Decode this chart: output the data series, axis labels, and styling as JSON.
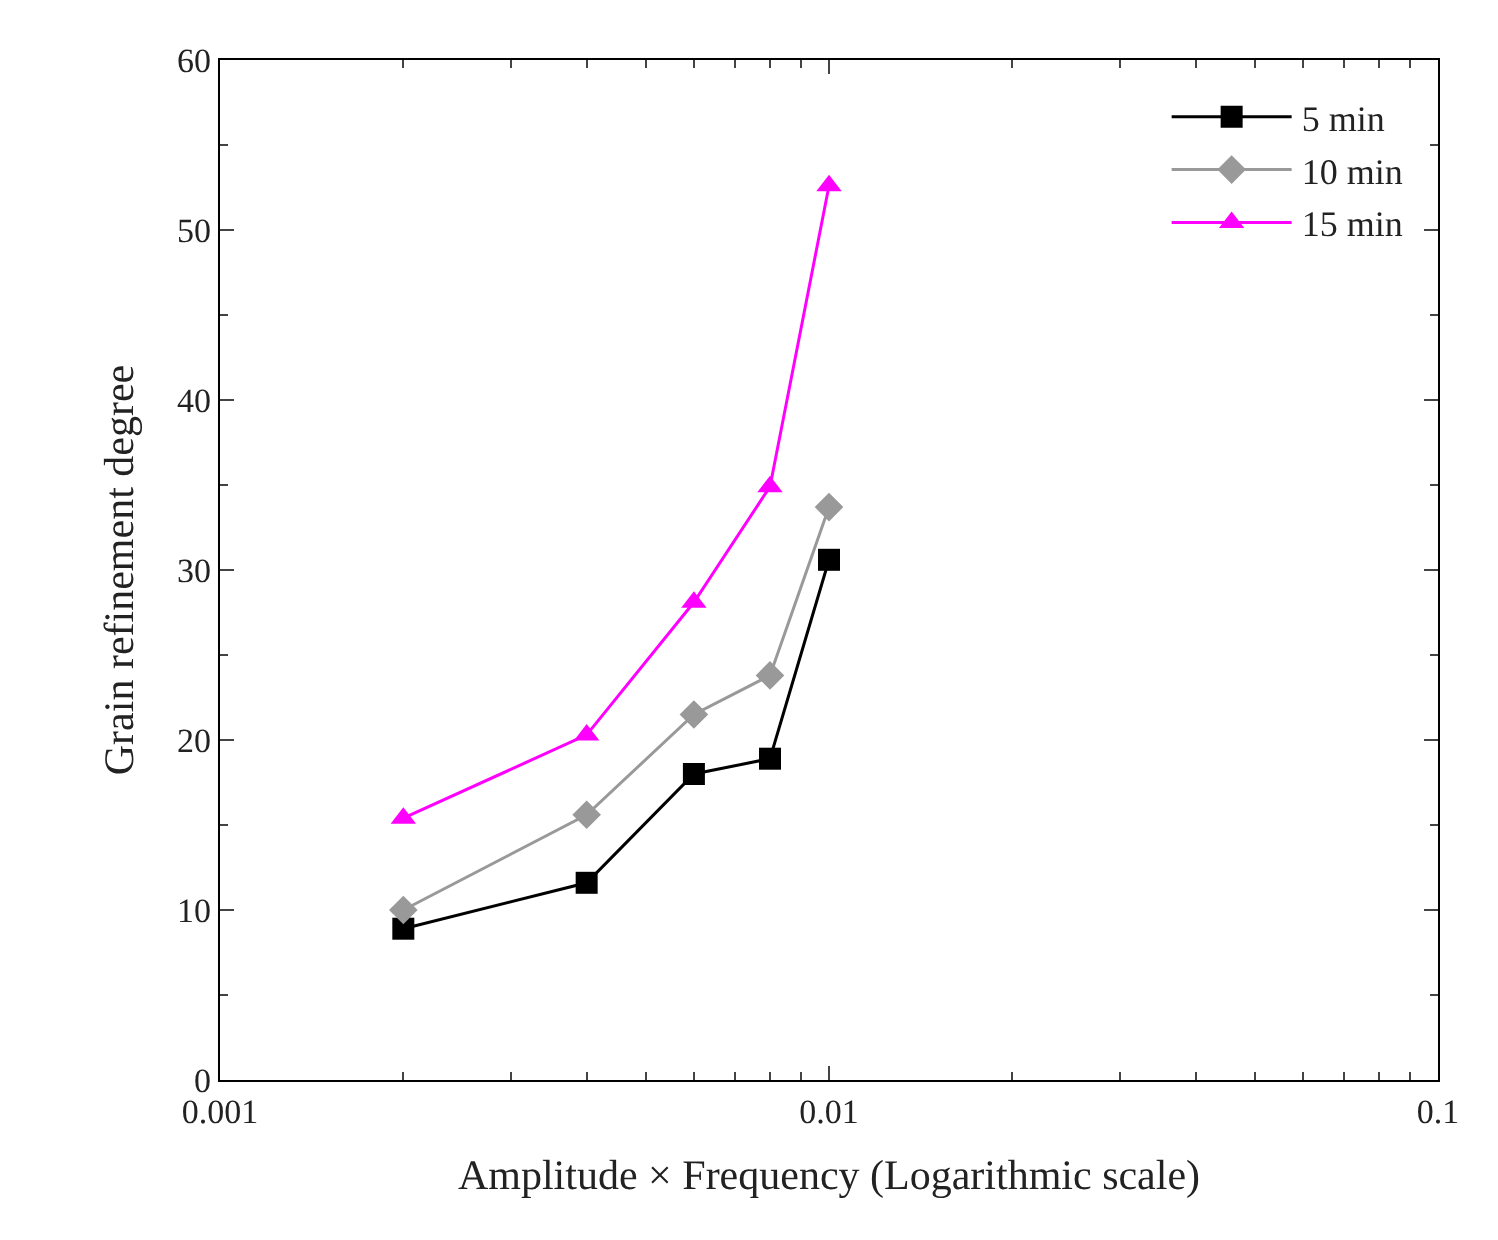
{
  "chart_data": {
    "type": "line",
    "xlabel": "Amplitude × Frequency (Logarithmic scale)",
    "ylabel": "Grain refinement degree",
    "x": [
      0.002,
      0.004,
      0.006,
      0.008,
      0.01
    ],
    "series": [
      {
        "name": "5 min",
        "color": "#000000",
        "marker": "square",
        "values": [
          8.9,
          11.6,
          18.0,
          18.9,
          30.6
        ]
      },
      {
        "name": "10 min",
        "color": "#999999",
        "marker": "diamond",
        "values": [
          10.0,
          15.6,
          21.5,
          23.8,
          33.7
        ]
      },
      {
        "name": "15 min",
        "color": "#ff00ff",
        "marker": "triangle",
        "values": [
          15.4,
          20.3,
          28.1,
          34.9,
          52.6
        ]
      }
    ],
    "log": "x",
    "xlim": [
      0.001,
      0.1
    ],
    "xticks": [
      0.001,
      0.01,
      0.1
    ],
    "ylim": [
      0,
      60
    ],
    "yticks": [
      0,
      10,
      20,
      30,
      40,
      50,
      60
    ],
    "legend": "top right",
    "line_style": "solid"
  }
}
